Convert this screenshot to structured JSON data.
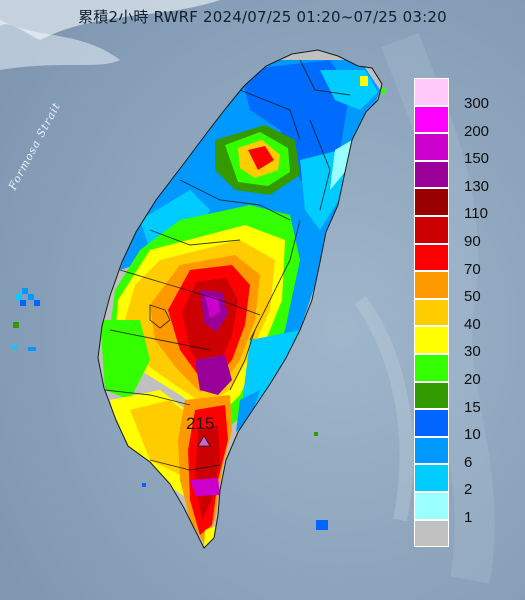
{
  "title": "累積2小時 RWRF 2024/07/25 01:20~07/25 03:20",
  "strait_label": "Formosa Strait",
  "peak_value": "215",
  "legend": [
    {
      "label": "300",
      "color": "#ffc8f9"
    },
    {
      "label": "200",
      "color": "#ff00ff"
    },
    {
      "label": "150",
      "color": "#cc00cc"
    },
    {
      "label": "130",
      "color": "#990099"
    },
    {
      "label": "110",
      "color": "#990000"
    },
    {
      "label": "90",
      "color": "#cc0000"
    },
    {
      "label": "70",
      "color": "#ff0000"
    },
    {
      "label": "50",
      "color": "#ff9900"
    },
    {
      "label": "40",
      "color": "#ffcc00"
    },
    {
      "label": "30",
      "color": "#ffff00"
    },
    {
      "label": "20",
      "color": "#33ff00"
    },
    {
      "label": "15",
      "color": "#339900"
    },
    {
      "label": "10",
      "color": "#0066ff"
    },
    {
      "label": "6",
      "color": "#0099ff"
    },
    {
      "label": "2",
      "color": "#00ccff"
    },
    {
      "label": "1",
      "color": "#99ffff"
    },
    {
      "label": "",
      "color": "#c0c0c0"
    }
  ]
}
